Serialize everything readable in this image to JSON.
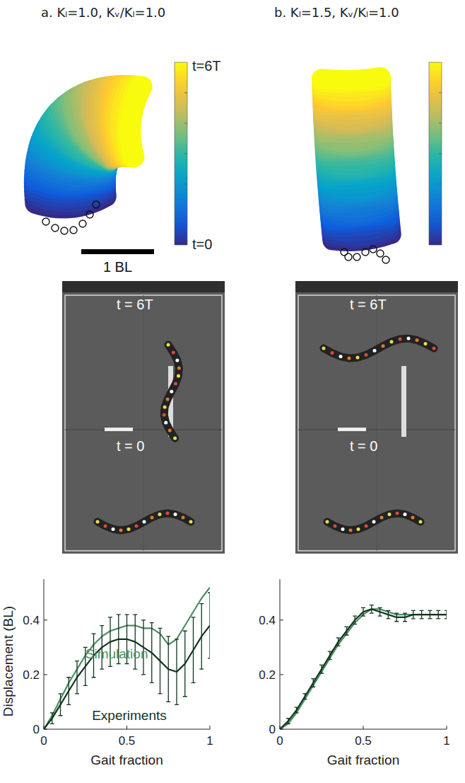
{
  "figure": {
    "panels": [
      {
        "title": "a. Kₗ=1.0, Kᵥ/Kₗ=1.0",
        "colorbar_labels": {
          "top": "t=6T",
          "bottom": "t=0"
        },
        "scale_bar": "1 BL",
        "photo_labels": {
          "top": "t = 6T",
          "bottom": "t = 0"
        }
      },
      {
        "title": "b. Kₗ=1.5, Kᵥ/Kₗ=1.0",
        "photo_labels": {
          "top": "t = 6T",
          "bottom": "t = 0"
        }
      }
    ]
  },
  "chart_data": [
    {
      "type": "line",
      "xlabel": "Gait fraction",
      "ylabel": "Displacement (BL)",
      "x": [
        0,
        0.05,
        0.1,
        0.15,
        0.2,
        0.25,
        0.3,
        0.35,
        0.4,
        0.45,
        0.5,
        0.55,
        0.6,
        0.65,
        0.7,
        0.75,
        0.8,
        0.85,
        0.9,
        0.95,
        1
      ],
      "xlim": [
        0,
        1
      ],
      "ylim": [
        0,
        0.55
      ],
      "xticks": [
        0,
        0.5,
        1
      ],
      "yticks": [
        0,
        0.2,
        0.4
      ],
      "series": [
        {
          "name": "Simulation",
          "color": "#4a8f63",
          "values": [
            0,
            0.05,
            0.11,
            0.17,
            0.22,
            0.27,
            0.31,
            0.34,
            0.36,
            0.37,
            0.38,
            0.38,
            0.37,
            0.37,
            0.35,
            0.31,
            0.33,
            0.38,
            0.43,
            0.48,
            0.52
          ]
        },
        {
          "name": "Experiments",
          "color": "#12351f",
          "values": [
            0,
            0.04,
            0.09,
            0.14,
            0.19,
            0.23,
            0.27,
            0.3,
            0.32,
            0.33,
            0.33,
            0.32,
            0.3,
            0.28,
            0.25,
            0.22,
            0.21,
            0.24,
            0.29,
            0.34,
            0.38
          ],
          "errors": [
            0,
            0.02,
            0.04,
            0.05,
            0.06,
            0.07,
            0.08,
            0.08,
            0.09,
            0.09,
            0.09,
            0.1,
            0.1,
            0.11,
            0.12,
            0.12,
            0.12,
            0.12,
            0.12,
            0.12,
            0.12
          ]
        }
      ]
    },
    {
      "type": "line",
      "xlabel": "Gait fraction",
      "x": [
        0,
        0.05,
        0.1,
        0.15,
        0.2,
        0.25,
        0.3,
        0.35,
        0.4,
        0.45,
        0.5,
        0.55,
        0.6,
        0.65,
        0.7,
        0.75,
        0.8,
        0.85,
        0.9,
        0.95,
        1
      ],
      "xlim": [
        0,
        1
      ],
      "ylim": [
        0,
        0.55
      ],
      "xticks": [
        0,
        0.5,
        1
      ],
      "yticks": [
        0,
        0.2,
        0.4
      ],
      "series": [
        {
          "color": "#4a8f63",
          "values": [
            0,
            0.02,
            0.06,
            0.11,
            0.16,
            0.21,
            0.26,
            0.31,
            0.35,
            0.39,
            0.42,
            0.44,
            0.44,
            0.43,
            0.42,
            0.42,
            0.42,
            0.42,
            0.42,
            0.42,
            0.42
          ]
        },
        {
          "color": "#12351f",
          "values": [
            0,
            0.03,
            0.07,
            0.12,
            0.17,
            0.22,
            0.27,
            0.32,
            0.36,
            0.4,
            0.43,
            0.44,
            0.43,
            0.42,
            0.41,
            0.41,
            0.42,
            0.42,
            0.42,
            0.42,
            0.42
          ],
          "errors": [
            0,
            0.01,
            0.01,
            0.01,
            0.015,
            0.015,
            0.015,
            0.015,
            0.015,
            0.015,
            0.015,
            0.015,
            0.015,
            0.015,
            0.015,
            0.015,
            0.015,
            0.015,
            0.015,
            0.015,
            0.015
          ]
        }
      ]
    }
  ]
}
